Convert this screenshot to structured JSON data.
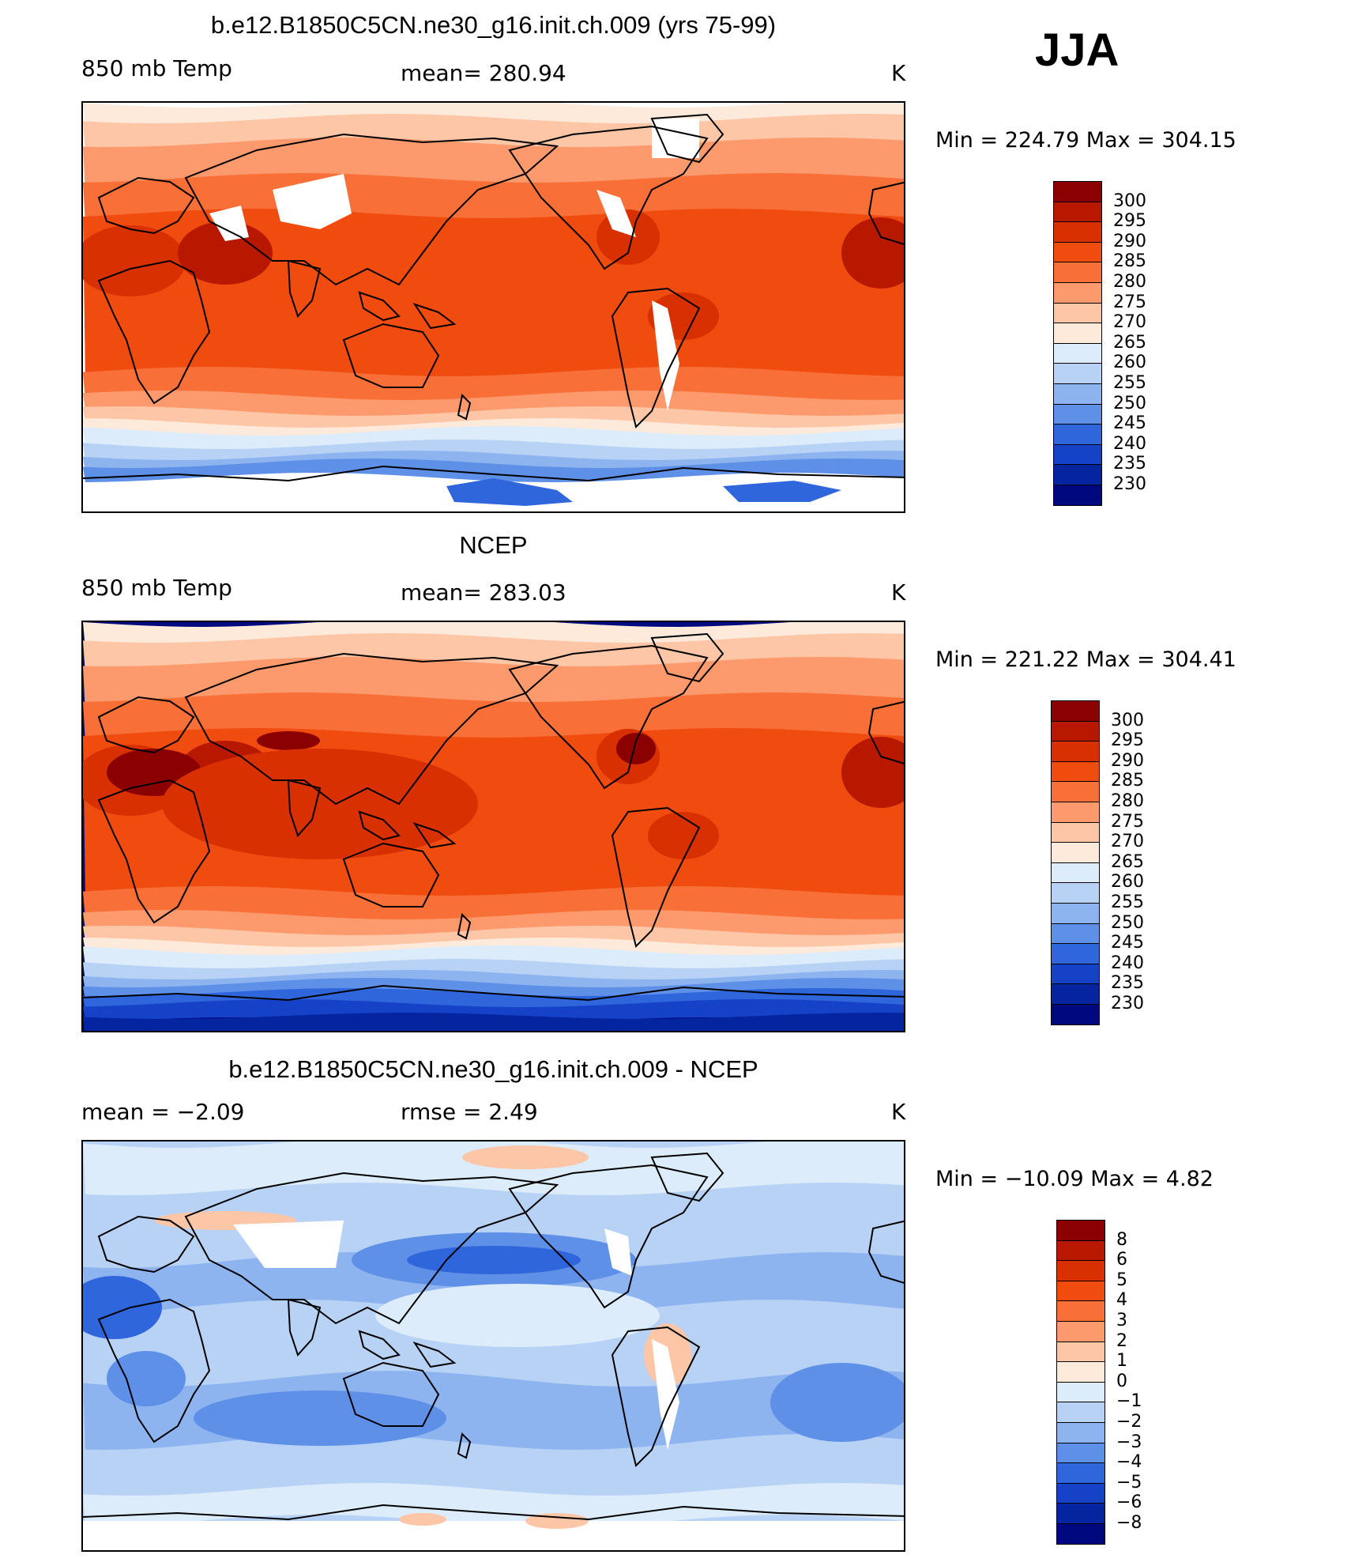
{
  "season": "JJA",
  "panels": [
    {
      "title": "b.e12.B1850C5CN.ne30_g16.init.ch.009 (yrs 75-99)",
      "left_label": "850 mb Temp",
      "center_label": "mean=  280.94",
      "units": "K",
      "minmax": "Min  =  224.79  Max  =  304.15",
      "kind": "model"
    },
    {
      "title": "NCEP",
      "left_label": "850 mb Temp",
      "center_label": "mean=  283.03",
      "units": "K",
      "minmax": "Min  =  221.22  Max  =  304.41",
      "kind": "obs"
    },
    {
      "title": "b.e12.B1850C5CN.ne30_g16.init.ch.009 - NCEP",
      "left_label": "mean  =     −2.09",
      "center_label": "rmse  =     2.49",
      "units": "K",
      "minmax": "Min  =  −10.09  Max  =     4.82",
      "kind": "diff"
    }
  ],
  "chart_data": [
    {
      "type": "heatmap",
      "title": "b.e12.B1850C5CN.ne30_g16.init.ch.009 (yrs 75-99)",
      "variable": "850 mb Temp",
      "units": "K",
      "mean": 280.94,
      "min": 224.79,
      "max": 304.15,
      "levels": [
        300,
        295,
        290,
        285,
        280,
        275,
        270,
        265,
        260,
        255,
        250,
        245,
        240,
        235,
        230
      ],
      "colors": [
        "#8b0000",
        "#b81800",
        "#d83000",
        "#f04c10",
        "#f87038",
        "#fc9a6e",
        "#fdc6a6",
        "#feeadb",
        "#dcecfa",
        "#b8d2f6",
        "#8eb4f0",
        "#5e90e8",
        "#2f66dc",
        "#1642c8",
        "#0424a0",
        "#000880"
      ]
    },
    {
      "type": "heatmap",
      "title": "NCEP",
      "variable": "850 mb Temp",
      "units": "K",
      "mean": 283.03,
      "min": 221.22,
      "max": 304.41,
      "levels": [
        300,
        295,
        290,
        285,
        280,
        275,
        270,
        265,
        260,
        255,
        250,
        245,
        240,
        235,
        230
      ],
      "colors": [
        "#8b0000",
        "#b81800",
        "#d83000",
        "#f04c10",
        "#f87038",
        "#fc9a6e",
        "#fdc6a6",
        "#feeadb",
        "#dcecfa",
        "#b8d2f6",
        "#8eb4f0",
        "#5e90e8",
        "#2f66dc",
        "#1642c8",
        "#0424a0",
        "#000880"
      ]
    },
    {
      "type": "heatmap",
      "title": "b.e12.B1850C5CN.ne30_g16.init.ch.009 - NCEP",
      "units": "K",
      "mean": -2.09,
      "rmse": 2.49,
      "min": -10.09,
      "max": 4.82,
      "levels": [
        "8",
        "6",
        "5",
        "4",
        "3",
        "2",
        "1",
        "0",
        "−1",
        "−2",
        "−3",
        "−4",
        "−5",
        "−6",
        "−8"
      ],
      "colors": [
        "#8b0000",
        "#b81800",
        "#d83000",
        "#f04c10",
        "#f87038",
        "#fc9a6e",
        "#fdc6a6",
        "#feeadb",
        "#dcecfa",
        "#b8d2f6",
        "#8eb4f0",
        "#5e90e8",
        "#2f66dc",
        "#1642c8",
        "#0424a0",
        "#000880"
      ]
    }
  ]
}
